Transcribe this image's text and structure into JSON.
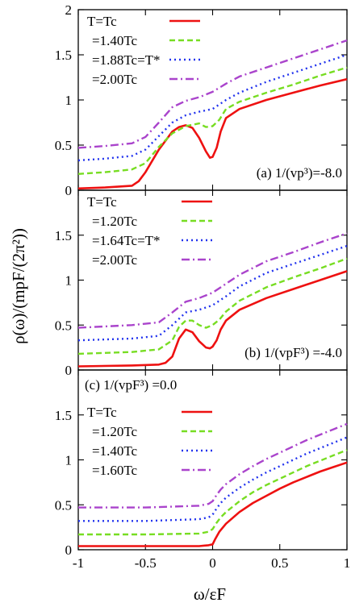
{
  "xlabel": "ω/εF",
  "ylabel": "ρ(ω)/(mpF/(2π²))",
  "chart_data": [
    {
      "type": "line",
      "annotation": "(a) 1/(vp³)=-8.0",
      "xlim": [
        -1,
        1
      ],
      "ylim": [
        0,
        2
      ],
      "yticks": [
        0,
        0.5,
        1,
        1.5,
        2
      ],
      "xticks": [],
      "legend_position": "top-left",
      "series": [
        {
          "name": "T=Tc",
          "color": "#ee1111",
          "dash": "solid",
          "x": [
            -1,
            -0.8,
            -0.6,
            -0.55,
            -0.5,
            -0.4,
            -0.3,
            -0.25,
            -0.2,
            -0.15,
            -0.1,
            -0.05,
            -0.02,
            0.0,
            0.03,
            0.06,
            0.1,
            0.2,
            0.4,
            0.6,
            0.8,
            1.0
          ],
          "y": [
            0.02,
            0.03,
            0.05,
            0.1,
            0.2,
            0.45,
            0.65,
            0.7,
            0.72,
            0.69,
            0.58,
            0.43,
            0.36,
            0.37,
            0.47,
            0.65,
            0.8,
            0.9,
            1.0,
            1.08,
            1.16,
            1.23
          ]
        },
        {
          "name": "=1.40Tc",
          "color": "#77dd22",
          "dash": "dashed",
          "x": [
            -1,
            -0.8,
            -0.6,
            -0.5,
            -0.4,
            -0.3,
            -0.2,
            -0.1,
            -0.05,
            0.0,
            0.05,
            0.1,
            0.2,
            0.4,
            0.6,
            0.8,
            1.0
          ],
          "y": [
            0.18,
            0.2,
            0.23,
            0.3,
            0.48,
            0.63,
            0.71,
            0.74,
            0.7,
            0.71,
            0.78,
            0.9,
            0.98,
            1.08,
            1.17,
            1.27,
            1.36
          ]
        },
        {
          "name": "=1.88Tc=T*",
          "color": "#2233ee",
          "dash": "dotted",
          "x": [
            -1,
            -0.8,
            -0.6,
            -0.5,
            -0.4,
            -0.3,
            -0.2,
            -0.1,
            0.0,
            0.1,
            0.2,
            0.4,
            0.6,
            0.8,
            1.0
          ],
          "y": [
            0.33,
            0.35,
            0.38,
            0.45,
            0.6,
            0.75,
            0.83,
            0.87,
            0.9,
            1.0,
            1.08,
            1.2,
            1.3,
            1.4,
            1.5
          ]
        },
        {
          "name": "=2.00Tc",
          "color": "#aa44cc",
          "dash": "dashdot",
          "x": [
            -1,
            -0.8,
            -0.6,
            -0.5,
            -0.4,
            -0.3,
            -0.2,
            -0.1,
            0.0,
            0.1,
            0.2,
            0.4,
            0.6,
            0.8,
            1.0
          ],
          "y": [
            0.47,
            0.49,
            0.52,
            0.59,
            0.75,
            0.92,
            0.99,
            1.03,
            1.09,
            1.18,
            1.26,
            1.36,
            1.46,
            1.56,
            1.66
          ]
        }
      ]
    },
    {
      "type": "line",
      "annotation": "(b) 1/(vpF³) =-4.0",
      "xlim": [
        -1,
        1
      ],
      "ylim": [
        0,
        2
      ],
      "yticks": [
        0,
        0.5,
        1,
        1.5
      ],
      "xticks": [],
      "legend_position": "top-left",
      "series": [
        {
          "name": "T=Tc",
          "color": "#ee1111",
          "dash": "solid",
          "x": [
            -1,
            -0.6,
            -0.4,
            -0.35,
            -0.3,
            -0.25,
            -0.2,
            -0.15,
            -0.1,
            -0.05,
            -0.02,
            0.0,
            0.03,
            0.06,
            0.1,
            0.2,
            0.4,
            0.6,
            0.8,
            1.0
          ],
          "y": [
            0.04,
            0.05,
            0.06,
            0.08,
            0.15,
            0.35,
            0.45,
            0.42,
            0.32,
            0.25,
            0.24,
            0.26,
            0.33,
            0.45,
            0.55,
            0.67,
            0.8,
            0.9,
            1.0,
            1.1
          ]
        },
        {
          "name": "=1.20Tc",
          "color": "#77dd22",
          "dash": "dashed",
          "x": [
            -1,
            -0.6,
            -0.4,
            -0.3,
            -0.25,
            -0.2,
            -0.15,
            -0.1,
            -0.05,
            0.0,
            0.05,
            0.1,
            0.2,
            0.4,
            0.6,
            0.8,
            1.0
          ],
          "y": [
            0.18,
            0.2,
            0.23,
            0.33,
            0.48,
            0.55,
            0.55,
            0.5,
            0.47,
            0.5,
            0.56,
            0.65,
            0.77,
            0.92,
            1.03,
            1.13,
            1.24
          ]
        },
        {
          "name": "=1.64Tc=T*",
          "color": "#2233ee",
          "dash": "dotted",
          "x": [
            -1,
            -0.6,
            -0.4,
            -0.3,
            -0.2,
            -0.1,
            0.0,
            0.1,
            0.2,
            0.4,
            0.6,
            0.8,
            1.0
          ],
          "y": [
            0.33,
            0.35,
            0.38,
            0.5,
            0.64,
            0.67,
            0.72,
            0.82,
            0.93,
            1.08,
            1.18,
            1.28,
            1.38
          ]
        },
        {
          "name": "=2.00Tc",
          "color": "#aa44cc",
          "dash": "dashdot",
          "x": [
            -1,
            -0.6,
            -0.4,
            -0.3,
            -0.2,
            -0.1,
            0.0,
            0.1,
            0.2,
            0.4,
            0.6,
            0.8,
            1.0
          ],
          "y": [
            0.47,
            0.5,
            0.53,
            0.64,
            0.76,
            0.8,
            0.86,
            0.96,
            1.06,
            1.21,
            1.31,
            1.42,
            1.52
          ]
        }
      ]
    },
    {
      "type": "line",
      "annotation": "(c) 1/(vpF³) =0.0",
      "xlim": [
        -1,
        1
      ],
      "ylim": [
        0,
        2
      ],
      "yticks": [
        0,
        0.5,
        1,
        1.5
      ],
      "xticks": [
        -1,
        -0.5,
        0,
        0.5,
        1
      ],
      "legend_position": "left",
      "series": [
        {
          "name": "T=Tc",
          "color": "#ee1111",
          "dash": "solid",
          "x": [
            -1,
            -0.5,
            -0.1,
            -0.03,
            0.0,
            0.02,
            0.05,
            0.1,
            0.2,
            0.3,
            0.4,
            0.5,
            0.6,
            0.7,
            0.8,
            0.9,
            1.0
          ],
          "y": [
            0.04,
            0.04,
            0.04,
            0.05,
            0.06,
            0.12,
            0.2,
            0.29,
            0.42,
            0.52,
            0.6,
            0.68,
            0.75,
            0.81,
            0.87,
            0.92,
            0.97
          ]
        },
        {
          "name": "=1.20Tc",
          "color": "#77dd22",
          "dash": "dashed",
          "x": [
            -1,
            -0.5,
            -0.1,
            -0.03,
            0.0,
            0.03,
            0.06,
            0.1,
            0.2,
            0.3,
            0.4,
            0.5,
            0.6,
            0.7,
            0.8,
            0.9,
            1.0
          ],
          "y": [
            0.17,
            0.17,
            0.18,
            0.2,
            0.23,
            0.3,
            0.36,
            0.42,
            0.54,
            0.64,
            0.72,
            0.79,
            0.86,
            0.93,
            0.99,
            1.05,
            1.11
          ]
        },
        {
          "name": "=1.40Tc",
          "color": "#2233ee",
          "dash": "dotted",
          "x": [
            -1,
            -0.5,
            -0.1,
            -0.03,
            0.0,
            0.03,
            0.06,
            0.1,
            0.2,
            0.3,
            0.4,
            0.5,
            0.6,
            0.7,
            0.8,
            0.9,
            1.0
          ],
          "y": [
            0.32,
            0.32,
            0.34,
            0.36,
            0.39,
            0.46,
            0.52,
            0.58,
            0.69,
            0.78,
            0.86,
            0.93,
            1.0,
            1.07,
            1.13,
            1.19,
            1.25
          ]
        },
        {
          "name": "=1.60Tc",
          "color": "#aa44cc",
          "dash": "dashdot",
          "x": [
            -1,
            -0.5,
            -0.1,
            -0.03,
            0.0,
            0.03,
            0.06,
            0.1,
            0.2,
            0.3,
            0.4,
            0.5,
            0.6,
            0.7,
            0.8,
            0.9,
            1.0
          ],
          "y": [
            0.47,
            0.47,
            0.49,
            0.51,
            0.54,
            0.61,
            0.67,
            0.73,
            0.84,
            0.93,
            1.01,
            1.08,
            1.15,
            1.22,
            1.28,
            1.34,
            1.4
          ]
        }
      ]
    }
  ]
}
